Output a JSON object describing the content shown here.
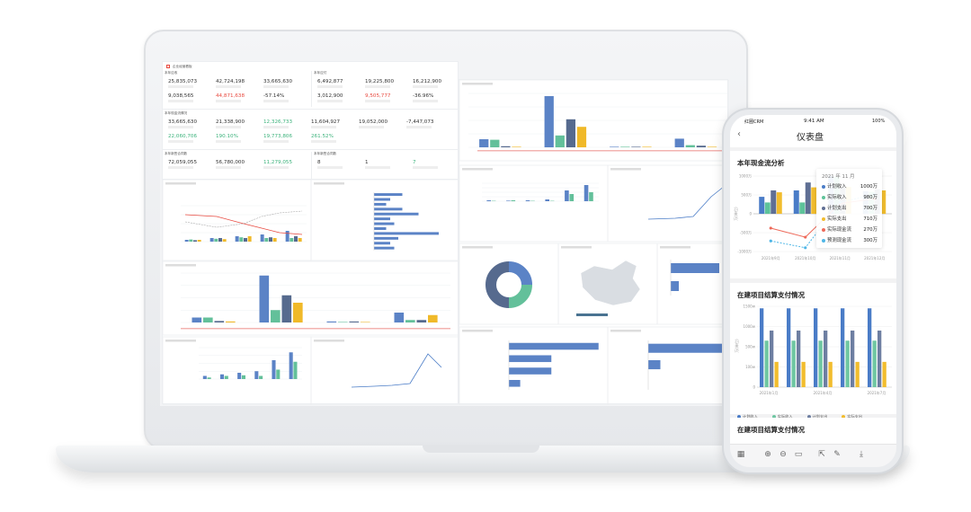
{
  "laptop": {
    "dashboard_title": "企业经营看板",
    "receivable": {
      "title": "本年应收",
      "values": [
        "25,835,073",
        "42,724,198",
        "33,665,630",
        "9,038,565",
        "44,871,638",
        "-57.14%"
      ]
    },
    "payable": {
      "title": "本年应付",
      "values": [
        "6,492,877",
        "19,225,800",
        "16,212,900",
        "3,012,900",
        "9,505,777",
        "-36.96%"
      ]
    },
    "cashflow": {
      "title": "本年现金流情况",
      "values": [
        "33,665,630",
        "21,338,900",
        "12,326,733",
        "11,604,927",
        "19,052,000",
        "-7,447,073",
        "22,060,706",
        "190.10%",
        "19,773,806",
        "261.52%"
      ]
    },
    "contracts_left": {
      "title": "本年新签合同数",
      "values": [
        "72,059,055",
        "56,780,000",
        "11,279,055"
      ]
    },
    "contracts_right": {
      "title": "本年新签合同数",
      "values": [
        "8",
        "1",
        "7"
      ]
    },
    "colors": {
      "blue": "#5b83c6",
      "green": "#63c09a",
      "navy": "#566a8e",
      "yellow": "#f0b929",
      "red": "#e8493f"
    }
  },
  "phone": {
    "carrier": "红圈CRM",
    "time": "9:41 AM",
    "battery": "100%",
    "title": "仪表盘",
    "cashflow_card": {
      "title": "本年现金流分析",
      "ylabel": "万(单位)"
    },
    "tooltip": {
      "header": "2021 年 11 月",
      "rows": [
        {
          "label": "计划收入",
          "value": "1000万"
        },
        {
          "label": "实际收入",
          "value": "980万"
        },
        {
          "label": "计划支出",
          "value": "700万"
        },
        {
          "label": "实际支出",
          "value": "710万"
        },
        {
          "label": "实际现金流",
          "value": "270万"
        },
        {
          "label": "预测现金流",
          "value": "300万"
        }
      ]
    },
    "project_card": {
      "title": "在建项目结算支付情况",
      "ylabel": "万(单位)"
    },
    "next_card": {
      "title": "在建项目结算支付情况"
    },
    "toolbar": [
      "grid-icon",
      "zoom-in-icon",
      "zoom-out-icon",
      "fit-icon",
      "share-icon",
      "edit-icon",
      "download-icon"
    ]
  },
  "chart_data": [
    {
      "type": "bar",
      "title": "本年现金流分析",
      "categories": [
        "2021年9月",
        "2021年10月",
        "2021年11月",
        "2021年12月"
      ],
      "yticks": [
        "1000万",
        "500万",
        "0",
        "-500万",
        "-1000万"
      ],
      "ylim": [
        -1000,
        1000
      ],
      "series": [
        {
          "name": "计划收入",
          "type": "bar",
          "color": "#4a7cc7",
          "values": [
            450,
            620,
            1000,
            600
          ]
        },
        {
          "name": "实际收入",
          "type": "bar",
          "color": "#5ec39a",
          "values": [
            300,
            300,
            980,
            580
          ]
        },
        {
          "name": "计划支出",
          "type": "bar",
          "color": "#5f6f94",
          "values": [
            620,
            830,
            700,
            650
          ]
        },
        {
          "name": "实际支出",
          "type": "bar",
          "color": "#f2bd2e",
          "values": [
            570,
            700,
            710,
            620
          ]
        },
        {
          "name": "实际现金流",
          "type": "line",
          "color": "#ee6a5a",
          "values": [
            -380,
            -620,
            270,
            400
          ]
        },
        {
          "name": "预测现金流",
          "type": "line",
          "color": "#4fb6e6",
          "values": [
            -720,
            -900,
            300,
            520
          ]
        }
      ],
      "legend_position": "bottom"
    },
    {
      "type": "bar",
      "title": "在建项目结算支付情况",
      "categories": [
        "2021年1月",
        "2021年2月",
        "2021年4月",
        "2021年5月",
        "2021年7月"
      ],
      "xtick_labels": [
        "2021年1月",
        "2021年4月",
        "2021年7月"
      ],
      "yticks": [
        "1500w",
        "1000w",
        "500w",
        "100w",
        "0"
      ],
      "series": [
        {
          "name": "计划收入",
          "color": "#4a7cc7",
          "values": [
            1450,
            1450,
            1450,
            1450,
            1450
          ]
        },
        {
          "name": "实际收入",
          "color": "#6fc7a2",
          "values": [
            650,
            650,
            650,
            650,
            650
          ]
        },
        {
          "name": "计划支出",
          "color": "#6e7fa2",
          "values": [
            900,
            900,
            900,
            900,
            900
          ]
        },
        {
          "name": "实际支出",
          "color": "#f2bd2e",
          "values": [
            200,
            200,
            200,
            200,
            200
          ]
        }
      ],
      "legend_position": "bottom"
    }
  ]
}
